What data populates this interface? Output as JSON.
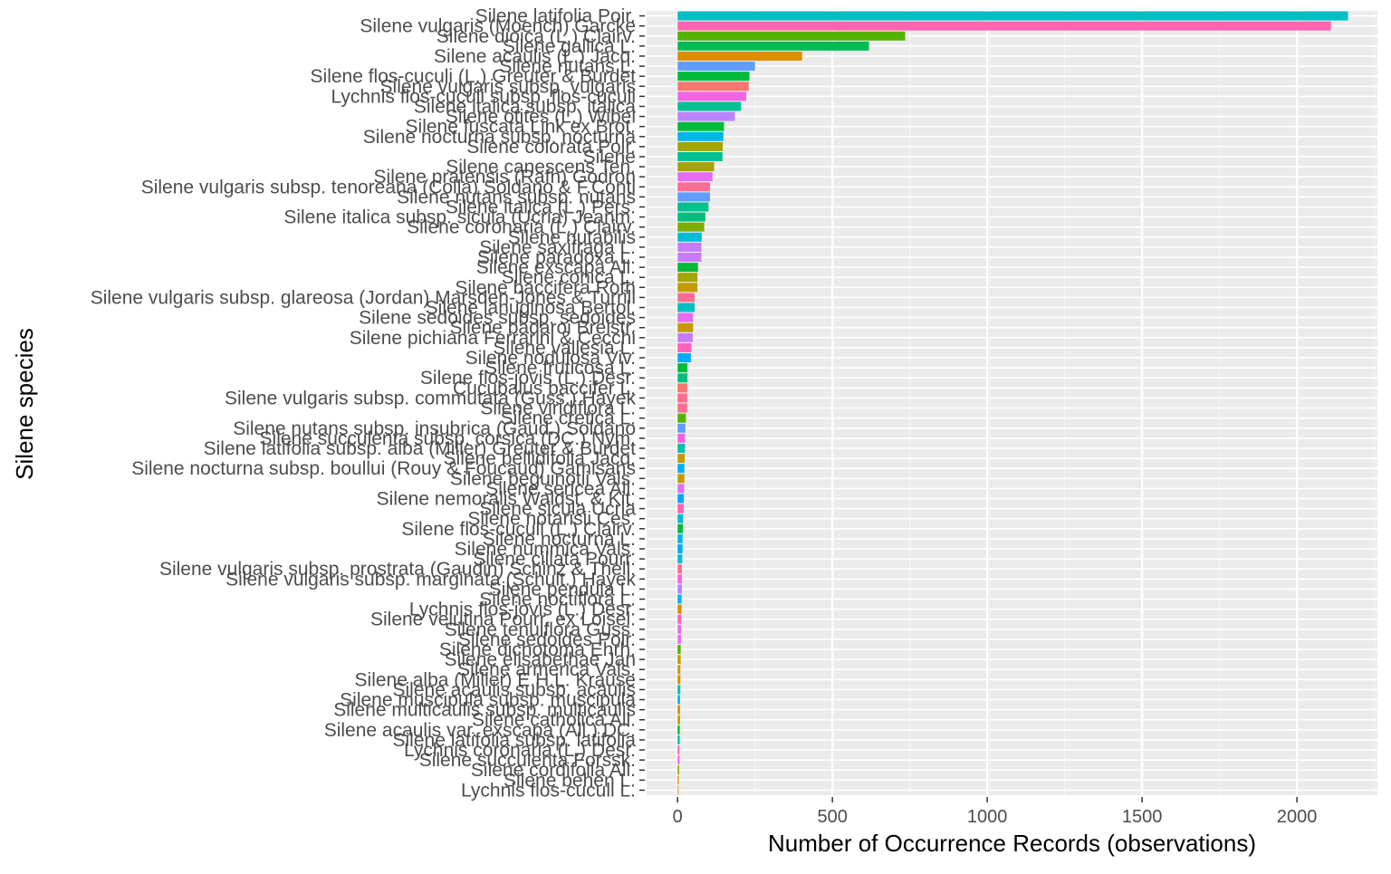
{
  "chart_data": {
    "type": "bar",
    "orientation": "horizontal",
    "xlabel": "Number of Occurrence Records (observations)",
    "ylabel": "Silene species",
    "xlim": [
      -100,
      2260
    ],
    "xticks": [
      0,
      500,
      1000,
      1500,
      2000
    ],
    "grid": true,
    "legend": "none",
    "categories": [
      "Silene latifolia Poir.",
      "Silene vulgaris (Moench) Garcke",
      "Silene dioica (L.) Clairv.",
      "Silene gallica L.",
      "Silene acaulis (L.) Jacq.",
      "Silene nutans L.",
      "Silene flos-cuculi (L.) Greuter & Burdet",
      "Silene vulgaris subsp. vulgaris",
      "Lychnis flos-cuculi subsp. flos-cuculi",
      "Silene italica subsp. italica",
      "Silene otites (L.) Wibel",
      "Silene fuscata Link ex Brot.",
      "Silene nocturna subsp. nocturna",
      "Silene colorata Poir.",
      "Silene",
      "Silene canescens Ten.",
      "Silene pratensis (Rafn) Godron",
      "Silene vulgaris subsp. tenoreana (Colla) Soldano & F.Conti",
      "Silene nutans subsp. nutans",
      "Silene italica (L.) Pers.",
      "Silene italica subsp. sicula (Ucria) Jeanm.",
      "Silene coronaria (L.) Clairv.",
      "Silene nutabilis",
      "Silene saxifraga L.",
      "Silene paradoxa L.",
      "Silene exscapa All.",
      "Silene conica L.",
      "Silene baccifera Roth",
      "Silene vulgaris subsp. glareosa (Jordan) Marsden-Jones & Turrill",
      "Silene lanuginosa Bertol.",
      "Silene sedoides subsp. sedoides",
      "Silene badaroi Breistr.",
      "Silene pichiana Ferrarini & Cecchi",
      "Silene vallesia L.",
      "Silene nodulosa Viv.",
      "Silene fruticosa L.",
      "Silene flos-jovis (L.) Desr.",
      "Cucubalus baccifer L.",
      "Silene vulgaris subsp. commutata (Guss.) Hayek",
      "Silene viridiflora L.",
      "Silene cretica L.",
      "Silene nutans subsp. insubrica (Gaud.) Soldano",
      "Silene succulenta subsp. corsica (DC.) Nym.",
      "Silene latifolia subsp. alba (Miller) Greuter & Burdet",
      "Silene bellidifolia Jacq.",
      "Silene nocturna subsp. boullui (Rouy & Foucaud) Gamisans",
      "Silene beguinotii Vals.",
      "Silene sericea All.",
      "Silene nemoralis Waldst. & Kit.",
      "Silene sicula Ucria",
      "Silene notarisii Ces.",
      "Silene flos-cuculi (L.) Clairv.",
      "Silene nocturna L.",
      "Silene nummica Vals.",
      "Silene ciliata Pourr.",
      "Silene vulgaris subsp. prostrata (Gaudin) Schinz & Thell.",
      "Silene vulgaris subsp. marginata (Schult.) Hayek",
      "Silene pendula L.",
      "Silene noctiflora L.",
      "Lychnis flos-jovis (L.) Desr.",
      "Silene velutina Pourr. ex Loisel.",
      "Silene tenuiflora Guss.",
      "Silene sedoides Poir.",
      "Silene dichotoma Ehrh.",
      "Silene elisabethae Jan",
      "Silene armerica Vals.",
      "Silene alba (Miller) E.H.L. Krause",
      "Silene acaulis subsp. acaulis",
      "Silene muscipula subsp. muscipula",
      "Silene multicaulis subsp. multicaulis",
      "Silene catholica All.",
      "Silene acaulis var. exscapa (All.) DC.",
      "Silene latifolia subsp. latifolia",
      "Lychnis coronaria (L.) Desr.",
      "Silene succulenta Forssk.",
      "Silene cordifolia All.",
      "Silene behen L.",
      "Lychnis flos-cuculi L."
    ],
    "values": [
      2165,
      2110,
      735,
      618,
      402,
      250,
      232,
      230,
      222,
      205,
      185,
      150,
      148,
      146,
      145,
      118,
      113,
      105,
      105,
      100,
      90,
      86,
      78,
      77,
      77,
      66,
      64,
      64,
      55,
      55,
      50,
      50,
      49,
      45,
      43,
      32,
      32,
      31,
      31,
      31,
      27,
      25,
      24,
      24,
      23,
      22,
      22,
      21,
      20,
      20,
      18,
      17,
      16,
      16,
      15,
      14,
      14,
      14,
      13,
      13,
      12,
      12,
      11,
      10,
      10,
      9,
      9,
      9,
      8,
      8,
      8,
      7,
      7,
      6,
      6,
      5,
      4,
      3
    ],
    "colors": [
      "#00BFC4",
      "#FF64B0",
      "#53B400",
      "#00BC56",
      "#DE8C00",
      "#619CFF",
      "#00BA38",
      "#F8766D",
      "#F564E3",
      "#00C094",
      "#B983FF",
      "#00BA38",
      "#00B6EB",
      "#A3A500",
      "#00C094",
      "#A3A500",
      "#E76BF3",
      "#FF6C91",
      "#619CFF",
      "#00C08B",
      "#00BF7D",
      "#7CAE00",
      "#00BCD8",
      "#C77CFF",
      "#C77CFF",
      "#00BA38",
      "#A3A500",
      "#C49A00",
      "#FF6C91",
      "#00BFC4",
      "#E76BF3",
      "#C49A00",
      "#C77CFF",
      "#FF62BC",
      "#00A9FF",
      "#00BA38",
      "#00BF7D",
      "#F8766D",
      "#FF6C91",
      "#FF6C91",
      "#53B400",
      "#619CFF",
      "#F564E3",
      "#00C0AF",
      "#C49A00",
      "#00B0F6",
      "#C49A00",
      "#DC71FA",
      "#00A9FF",
      "#FF64B0",
      "#00BCD8",
      "#00BA38",
      "#00B6EB",
      "#00ABFD",
      "#00BCD8",
      "#FF6C91",
      "#F564E3",
      "#B983FF",
      "#00B6EB",
      "#DE8C00",
      "#FF62BC",
      "#E76BF3",
      "#E76BF3",
      "#53B400",
      "#C49A00",
      "#C49A00",
      "#DE8C00",
      "#00C0AF",
      "#00BCD8",
      "#DE8C00",
      "#C49A00",
      "#00BA38",
      "#00C094",
      "#FF62BC",
      "#F564E3",
      "#7CAE00",
      "#DE8C00",
      "#E68613"
    ]
  }
}
